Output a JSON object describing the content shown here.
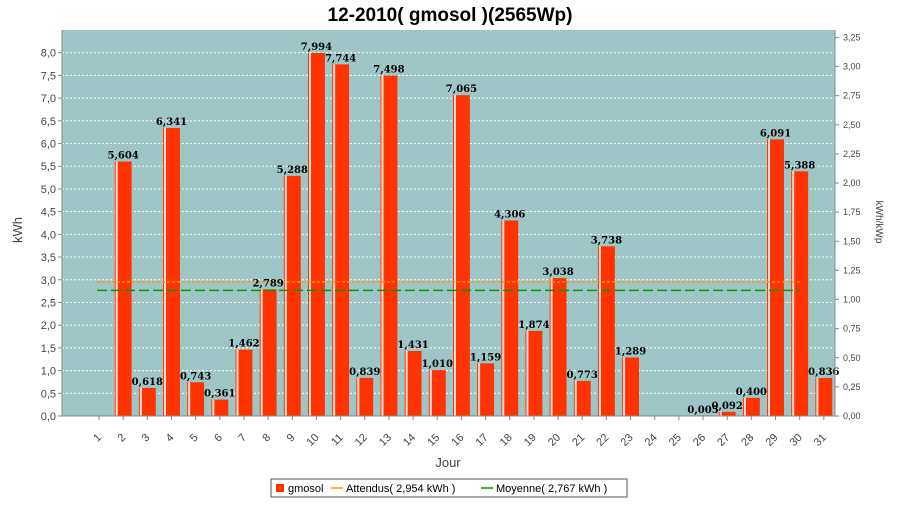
{
  "chart_data": {
    "type": "bar",
    "title": "12-2010( gmosol )(2565Wp)",
    "xlabel": "Jour",
    "ylabel": "kWh",
    "ylabel_right": "kWh/kWp",
    "ylim": [
      0,
      8.5
    ],
    "ylim_right": [
      0,
      3.3138
    ],
    "grid": true,
    "legend_position": "bottom",
    "y_ticks": [
      "0,0",
      "0,5",
      "1,0",
      "1,5",
      "2,0",
      "2,5",
      "3,0",
      "3,5",
      "4,0",
      "4,5",
      "5,0",
      "5,5",
      "6,0",
      "6,5",
      "7,0",
      "7,5",
      "8,0"
    ],
    "y_right_ticks": [
      "0,00",
      "0,25",
      "0,50",
      "0,75",
      "1,00",
      "1,25",
      "1,50",
      "1,75",
      "2,00",
      "2,25",
      "2,50",
      "2,75",
      "3,00",
      "3,25"
    ],
    "categories": [
      "1",
      "2",
      "3",
      "4",
      "5",
      "6",
      "7",
      "8",
      "9",
      "10",
      "11",
      "12",
      "13",
      "14",
      "15",
      "16",
      "17",
      "18",
      "19",
      "20",
      "21",
      "22",
      "23",
      "24",
      "25",
      "26",
      "27",
      "28",
      "29",
      "30",
      "31"
    ],
    "series": [
      {
        "name": "gmosol",
        "color": "#ff3300",
        "values": [
          0,
          5.604,
          0.618,
          6.341,
          0.743,
          0.361,
          1.462,
          2.789,
          5.288,
          7.994,
          7.744,
          0.839,
          7.498,
          1.431,
          1.01,
          7.065,
          1.159,
          4.306,
          1.874,
          3.038,
          0.773,
          3.738,
          1.289,
          0,
          0,
          0.005,
          0.092,
          0.4,
          6.091,
          5.388,
          0.836
        ],
        "labels": [
          "",
          "5,604",
          "0,618",
          "6,341",
          "0,743",
          "0,361",
          "1,462",
          "2,789",
          "5,288",
          "7,994",
          "7,744",
          "0,839",
          "7,498",
          "1,431",
          "1,010",
          "7,065",
          "1,159",
          "4,306",
          "1,874",
          "3,038",
          "0,773",
          "3,738",
          "1,289",
          "",
          "",
          "0,005",
          "0,092",
          "0,400",
          "6,091",
          "5,388",
          "0,836"
        ]
      }
    ],
    "reference_lines": [
      {
        "name": "Attendus( 2,954 kWh )",
        "value": 2.954,
        "color": "#ff9900"
      },
      {
        "name": "Moyenne( 2,767 kWh )",
        "value": 2.767,
        "color": "#009900"
      }
    ],
    "colors": {
      "plot_background": "#9fc6c6",
      "bar": "#ff3300",
      "grid": "#ffffff"
    }
  },
  "legend": {
    "bar_label": "gmosol",
    "expected_label": "Attendus( 2,954 kWh )",
    "average_label": "Moyenne( 2,767 kWh )"
  }
}
